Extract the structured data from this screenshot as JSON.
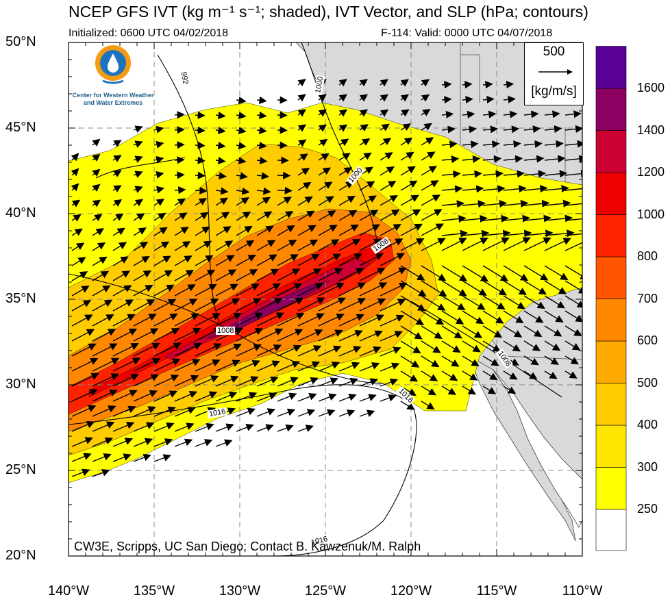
{
  "header": {
    "title": "NCEP GFS IVT (kg m⁻¹ s⁻¹; shaded), IVT Vector, and SLP (hPa; contours)",
    "initialized": "Initialized: 0600 UTC 04/02/2018",
    "valid": "F-114: Valid: 0000 UTC 04/07/2018"
  },
  "logo": {
    "org_line1": "Center for Western Weather",
    "org_line2": "and Water Extremes"
  },
  "vector_key": {
    "magnitude": "500",
    "unit": "[kg/m/s]"
  },
  "credit": "CW3E, Scripps, UC San Diego; Contact B. Kawzenuk/M. Ralph",
  "axes": {
    "lat_labels": [
      "50°N",
      "45°N",
      "40°N",
      "35°N",
      "30°N",
      "25°N",
      "20°N"
    ],
    "lon_labels": [
      "140°W",
      "135°W",
      "130°W",
      "125°W",
      "120°W",
      "115°W",
      "110°W"
    ]
  },
  "slp_contour_labels": [
    "992",
    "1000",
    "1000",
    "1008",
    "1008",
    "1008",
    "1016",
    "1016",
    "1016"
  ],
  "colorbar": {
    "levels": [
      "250",
      "300",
      "400",
      "500",
      "600",
      "700",
      "800",
      "1000",
      "1200",
      "1400",
      "1600"
    ],
    "colors": [
      "#ffff00",
      "#ffe600",
      "#ffcc00",
      "#ffaa00",
      "#ff8800",
      "#ff5500",
      "#ff2200",
      "#ee0000",
      "#cc0033",
      "#8b0060",
      "#5a0096"
    ]
  },
  "colors": {
    "land": "#d9d9d9",
    "ocean": "#ffffff"
  }
}
